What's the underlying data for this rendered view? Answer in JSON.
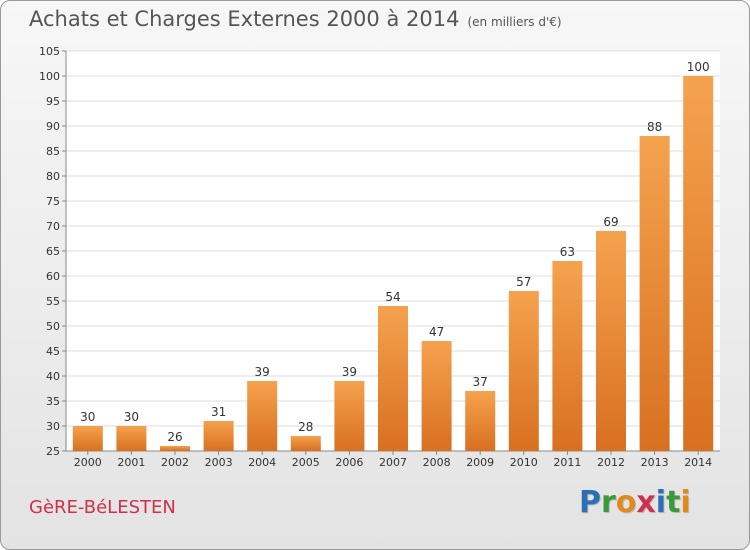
{
  "header": {
    "title": "Achats et Charges Externes 2000 à 2014",
    "unit": "(en milliers d'€)"
  },
  "footer": {
    "commune": "GèRE-BéLESTEN",
    "logo_letters": [
      {
        "char": "P",
        "color": "#2b6fb5"
      },
      {
        "char": "r",
        "color": "#3a9a3a"
      },
      {
        "char": "o",
        "color": "#e08a1e"
      },
      {
        "char": "x",
        "color": "#d0304a"
      },
      {
        "char": "i",
        "color": "#2b6fb5"
      },
      {
        "char": "t",
        "color": "#3a9a3a"
      },
      {
        "char": "i",
        "color": "#e08a1e"
      }
    ]
  },
  "colors": {
    "bar_top": "#f5a24e",
    "bar_bottom": "#d87020",
    "commune": "#d0304a"
  },
  "chart_data": {
    "type": "bar",
    "categories": [
      "2000",
      "2001",
      "2002",
      "2003",
      "2004",
      "2005",
      "2006",
      "2007",
      "2008",
      "2009",
      "2010",
      "2011",
      "2012",
      "2013",
      "2014"
    ],
    "values": [
      30,
      30,
      26,
      31,
      39,
      28,
      39,
      54,
      47,
      37,
      57,
      63,
      69,
      88,
      100
    ],
    "ylim": [
      25,
      105
    ],
    "yticks": [
      25,
      30,
      35,
      40,
      45,
      50,
      55,
      60,
      65,
      70,
      75,
      80,
      85,
      90,
      95,
      100,
      105
    ],
    "grid": true,
    "data_labels": true
  }
}
